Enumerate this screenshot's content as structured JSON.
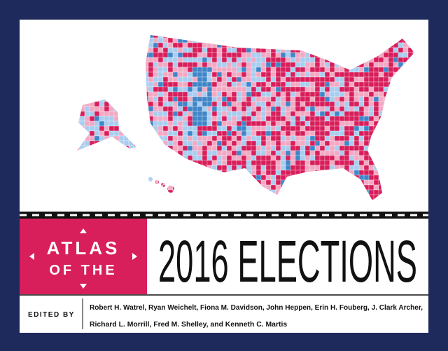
{
  "cover": {
    "badge": {
      "line1": "ATLAS",
      "line2": "OF THE"
    },
    "title": "2016 ELECTIONS",
    "edited_by": "EDITED BY",
    "editors": [
      "Robert H. Watrel, Ryan Weichelt, Fiona M. Davidson, John Heppen, Erin H. Fouberg, J. Clark Archer,",
      "Richard L. Morrill, Fred M. Shelley, and Kenneth C. Martis"
    ]
  }
}
